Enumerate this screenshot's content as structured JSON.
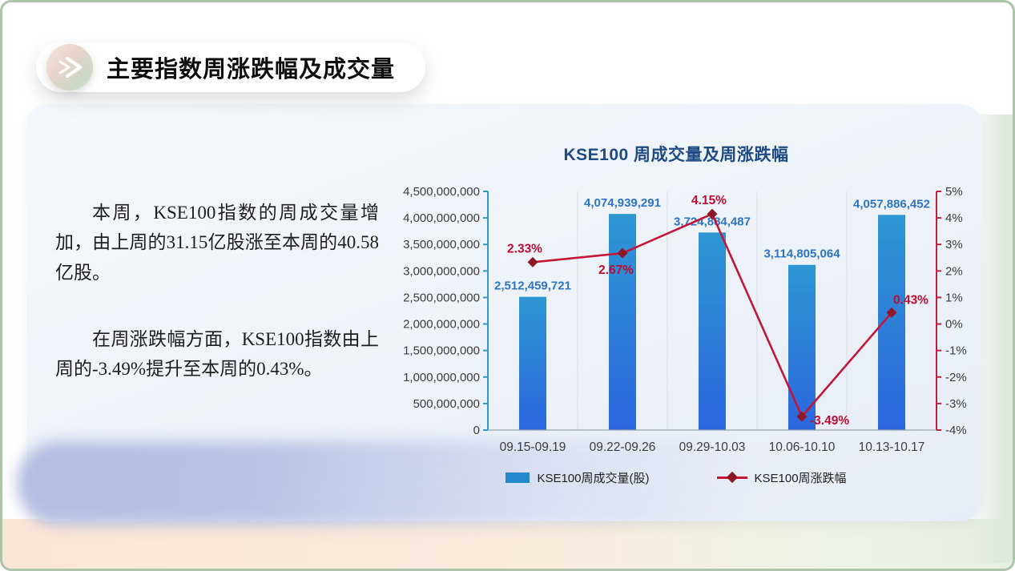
{
  "slide": {
    "title": "主要指数周涨跌幅及成交量",
    "paragraphs": [
      "本周，KSE100指数的周成交量增加，由上周的31.15亿股涨至本周的40.58亿股。",
      "在周涨跌幅方面，KSE100指数由上周的-3.49%提升至本周的0.43%。"
    ],
    "accent_colors": {
      "bar_blue": "#2389CB",
      "line_red": "#C31638",
      "label_blue": "#2E74C4",
      "label_red": "#C00E32",
      "title_navy": "#1E4A84"
    }
  },
  "chart_data": {
    "type": "bar",
    "subtype": "combo bar+line, dual axis",
    "title": "KSE100 周成交量及周涨跌幅",
    "categories": [
      "09.15-09.19",
      "09.22-09.26",
      "09.29-10.03",
      "10.06-10.10",
      "10.13-10.17"
    ],
    "series": [
      {
        "name": "KSE100周成交量(股)",
        "type": "bar",
        "axis": "left",
        "values": [
          2512459721,
          4074939291,
          3724884487,
          3114805064,
          4057886452
        ],
        "labels": [
          "2,512,459,721",
          "4,074,939,291",
          "3,724,884,487",
          "3,114,805,064",
          "4,057,886,452"
        ],
        "color_top": "#2E97D3",
        "color_bottom": "#2C66DE",
        "label_color": "#2E74C4"
      },
      {
        "name": "KSE100周涨跌幅",
        "type": "line",
        "axis": "right",
        "values": [
          2.33,
          2.67,
          4.15,
          -3.49,
          0.43
        ],
        "labels": [
          "2.33%",
          "2.67%",
          "4.15%",
          "-3.49%",
          "0.43%"
        ],
        "color": "#C31638",
        "marker_color": "#8E1828",
        "label_color": "#C00E32"
      }
    ],
    "left_axis": {
      "min": 0,
      "max": 4500000000,
      "step": 500000000,
      "tick_labels": [
        "0",
        "500,000,000",
        "1,000,000,000",
        "1,500,000,000",
        "2,000,000,000",
        "2,500,000,000",
        "3,000,000,000",
        "3,500,000,000",
        "4,000,000,000",
        "4,500,000,000"
      ],
      "color": "#2E9BC8"
    },
    "right_axis": {
      "min": -4,
      "max": 5,
      "step": 1,
      "tick_labels": [
        "-4%",
        "-3%",
        "-2%",
        "-1%",
        "0%",
        "1%",
        "2%",
        "3%",
        "4%",
        "5%"
      ],
      "color": "#C11D3F"
    },
    "grid": "vertical category separators only",
    "legend_position": "bottom center"
  }
}
